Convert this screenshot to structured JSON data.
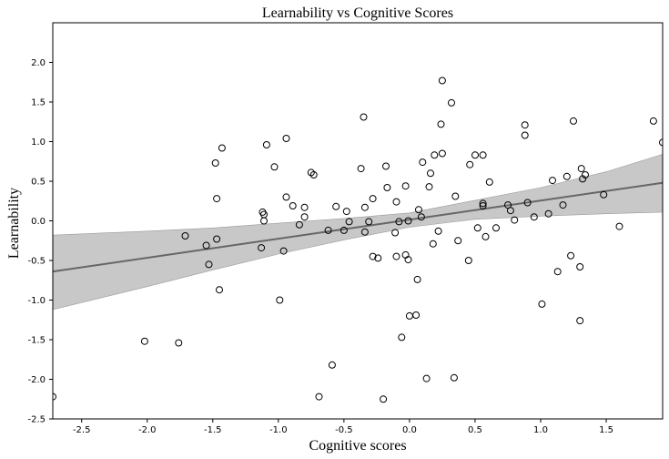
{
  "chart_data": {
    "type": "scatter",
    "title": "Learnability vs Cognitive Scores",
    "xlabel": "Cognitive scores",
    "ylabel": "Learnability",
    "xlim": [
      -2.72,
      1.93
    ],
    "ylim": [
      -2.5,
      2.5
    ],
    "xticks": [
      "-2.5",
      "-2.0",
      "-1.5",
      "-1.0",
      "-0.5",
      "0.0",
      "0.5",
      "1.0",
      "1.5"
    ],
    "xtick_values": [
      -2.5,
      -2.0,
      -1.5,
      -1.0,
      -0.5,
      0.0,
      0.5,
      1.0,
      1.5
    ],
    "yticks": [
      "-2.5",
      "-2.0",
      "-1.5",
      "-1.0",
      "-0.5",
      "0.0",
      "0.5",
      "1.0",
      "1.5",
      "2.0"
    ],
    "ytick_values": [
      -2.5,
      -2.0,
      -1.5,
      -1.0,
      -0.5,
      0.0,
      0.5,
      1.0,
      1.5,
      2.0
    ],
    "grid": false,
    "marker_color": "#000000",
    "fit_color": "#666666",
    "band_color": "#c8c8c8",
    "regression": {
      "line": [
        [
          -2.72,
          -0.64
        ],
        [
          1.93,
          0.48
        ]
      ],
      "ci_upper": [
        [
          -2.72,
          -0.18
        ],
        [
          -2.0,
          -0.13
        ],
        [
          -1.5,
          -0.09
        ],
        [
          -1.0,
          -0.03
        ],
        [
          -0.5,
          0.03
        ],
        [
          0.0,
          0.1
        ],
        [
          0.5,
          0.26
        ],
        [
          1.0,
          0.42
        ],
        [
          1.5,
          0.62
        ],
        [
          1.93,
          0.84
        ]
      ],
      "ci_lower": [
        [
          -2.72,
          -1.12
        ],
        [
          -2.0,
          -0.83
        ],
        [
          -1.5,
          -0.62
        ],
        [
          -1.0,
          -0.42
        ],
        [
          -0.5,
          -0.24
        ],
        [
          0.0,
          -0.08
        ],
        [
          0.5,
          0.02
        ],
        [
          1.0,
          0.06
        ],
        [
          1.5,
          0.09
        ],
        [
          1.93,
          0.11
        ]
      ]
    },
    "points": [
      [
        -2.72,
        -2.22
      ],
      [
        -2.02,
        -1.52
      ],
      [
        -1.76,
        -1.54
      ],
      [
        -1.71,
        -0.19
      ],
      [
        -1.55,
        -0.31
      ],
      [
        -1.53,
        -0.55
      ],
      [
        -1.48,
        0.73
      ],
      [
        -1.47,
        0.28
      ],
      [
        -1.47,
        -0.23
      ],
      [
        -1.45,
        -0.87
      ],
      [
        -1.43,
        0.92
      ],
      [
        -1.13,
        -0.34
      ],
      [
        -1.12,
        0.11
      ],
      [
        -1.11,
        0.0
      ],
      [
        -1.11,
        0.08
      ],
      [
        -1.09,
        0.96
      ],
      [
        -1.03,
        0.68
      ],
      [
        -0.99,
        -1.0
      ],
      [
        -0.96,
        -0.38
      ],
      [
        -0.94,
        0.3
      ],
      [
        -0.94,
        1.04
      ],
      [
        -0.89,
        0.19
      ],
      [
        -0.84,
        -0.05
      ],
      [
        -0.8,
        0.05
      ],
      [
        -0.8,
        0.17
      ],
      [
        -0.75,
        0.61
      ],
      [
        -0.73,
        0.58
      ],
      [
        -0.69,
        -2.22
      ],
      [
        -0.62,
        -0.12
      ],
      [
        -0.59,
        -1.82
      ],
      [
        -0.56,
        0.18
      ],
      [
        -0.5,
        -0.12
      ],
      [
        -0.48,
        0.12
      ],
      [
        -0.46,
        -0.01
      ],
      [
        -0.37,
        0.66
      ],
      [
        -0.35,
        1.31
      ],
      [
        -0.34,
        -0.14
      ],
      [
        -0.34,
        0.17
      ],
      [
        -0.31,
        -0.01
      ],
      [
        -0.28,
        0.28
      ],
      [
        -0.28,
        -0.45
      ],
      [
        -0.24,
        -0.47
      ],
      [
        -0.2,
        -2.25
      ],
      [
        -0.18,
        0.69
      ],
      [
        -0.17,
        0.42
      ],
      [
        -0.11,
        -0.15
      ],
      [
        -0.1,
        0.24
      ],
      [
        -0.1,
        -0.45
      ],
      [
        -0.08,
        -0.01
      ],
      [
        -0.06,
        -1.47
      ],
      [
        -0.03,
        0.44
      ],
      [
        -0.03,
        -0.43
      ],
      [
        -0.01,
        0.0
      ],
      [
        -0.01,
        -0.49
      ],
      [
        0.0,
        -1.2
      ],
      [
        0.05,
        -1.19
      ],
      [
        0.06,
        -0.74
      ],
      [
        0.07,
        0.14
      ],
      [
        0.09,
        0.05
      ],
      [
        0.1,
        0.74
      ],
      [
        0.13,
        -1.99
      ],
      [
        0.15,
        0.43
      ],
      [
        0.16,
        0.6
      ],
      [
        0.18,
        -0.29
      ],
      [
        0.19,
        0.83
      ],
      [
        0.22,
        -0.13
      ],
      [
        0.24,
        1.22
      ],
      [
        0.25,
        0.85
      ],
      [
        0.25,
        1.77
      ],
      [
        0.32,
        1.49
      ],
      [
        0.34,
        -1.98
      ],
      [
        0.35,
        0.31
      ],
      [
        0.37,
        -0.25
      ],
      [
        0.45,
        -0.5
      ],
      [
        0.46,
        0.71
      ],
      [
        0.5,
        0.83
      ],
      [
        0.52,
        -0.09
      ],
      [
        0.56,
        0.83
      ],
      [
        0.56,
        0.22
      ],
      [
        0.56,
        0.19
      ],
      [
        0.58,
        -0.2
      ],
      [
        0.61,
        0.49
      ],
      [
        0.66,
        -0.09
      ],
      [
        0.75,
        0.2
      ],
      [
        0.77,
        0.13
      ],
      [
        0.8,
        0.01
      ],
      [
        0.88,
        1.08
      ],
      [
        0.88,
        1.21
      ],
      [
        0.9,
        0.23
      ],
      [
        0.95,
        0.05
      ],
      [
        1.01,
        -1.05
      ],
      [
        1.06,
        0.09
      ],
      [
        1.09,
        0.51
      ],
      [
        1.13,
        -0.64
      ],
      [
        1.17,
        0.2
      ],
      [
        1.2,
        0.56
      ],
      [
        1.23,
        -0.44
      ],
      [
        1.25,
        1.26
      ],
      [
        1.3,
        -0.58
      ],
      [
        1.3,
        -1.26
      ],
      [
        1.31,
        0.66
      ],
      [
        1.32,
        0.53
      ],
      [
        1.34,
        0.58
      ],
      [
        1.48,
        0.33
      ],
      [
        1.6,
        -0.07
      ],
      [
        1.86,
        1.26
      ],
      [
        1.93,
        0.99
      ]
    ]
  }
}
